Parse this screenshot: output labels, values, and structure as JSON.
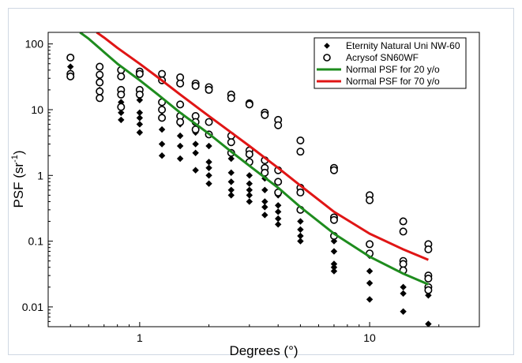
{
  "chart_data": {
    "type": "scatter",
    "xlabel": "Degrees (°)",
    "ylabel_main": "PSF (sr",
    "ylabel_sup": "-1",
    "ylabel_close": ")",
    "x_scale": "log",
    "y_scale": "log",
    "xlim": [
      0.4,
      30
    ],
    "ylim": [
      0.005,
      150
    ],
    "x_ticks": [
      1,
      10
    ],
    "x_tick_labels": [
      "1",
      "10"
    ],
    "y_ticks": [
      0.01,
      0.1,
      1,
      10,
      100
    ],
    "y_tick_labels": [
      "0.01",
      "0.1",
      "1",
      "10",
      "100"
    ],
    "grid": false,
    "legend_position": "top-right",
    "series": [
      {
        "name": "Eternity Natural Uni NW-60",
        "kind": "scatter",
        "marker": "diamond",
        "color": "#000000",
        "points": [
          [
            0.5,
            45
          ],
          [
            0.5,
            33
          ],
          [
            0.67,
            28
          ],
          [
            0.67,
            20
          ],
          [
            0.67,
            15
          ],
          [
            0.83,
            17
          ],
          [
            0.83,
            13
          ],
          [
            0.83,
            9
          ],
          [
            0.83,
            7
          ],
          [
            1.0,
            14
          ],
          [
            1.0,
            9
          ],
          [
            1.0,
            7.5
          ],
          [
            1.0,
            6
          ],
          [
            1.0,
            4.5
          ],
          [
            1.25,
            8
          ],
          [
            1.25,
            5
          ],
          [
            1.25,
            3
          ],
          [
            1.25,
            2
          ],
          [
            1.5,
            6
          ],
          [
            1.5,
            4
          ],
          [
            1.5,
            2.8
          ],
          [
            1.5,
            1.8
          ],
          [
            1.75,
            4.5
          ],
          [
            1.75,
            3
          ],
          [
            1.75,
            2.2
          ],
          [
            1.75,
            1.2
          ],
          [
            2.0,
            2.8
          ],
          [
            2.0,
            1.6
          ],
          [
            2.0,
            1.3
          ],
          [
            2.0,
            1.0
          ],
          [
            2.0,
            0.75
          ],
          [
            2.5,
            1.8
          ],
          [
            2.5,
            1.1
          ],
          [
            2.5,
            0.8
          ],
          [
            2.5,
            0.6
          ],
          [
            2.5,
            0.5
          ],
          [
            3.0,
            1.0
          ],
          [
            3.0,
            0.75
          ],
          [
            3.0,
            0.6
          ],
          [
            3.0,
            0.5
          ],
          [
            3.0,
            0.4
          ],
          [
            3.5,
            0.9
          ],
          [
            3.5,
            0.6
          ],
          [
            3.5,
            0.4
          ],
          [
            3.5,
            0.33
          ],
          [
            3.5,
            0.25
          ],
          [
            4.0,
            0.5
          ],
          [
            4.0,
            0.35
          ],
          [
            4.0,
            0.28
          ],
          [
            4.0,
            0.22
          ],
          [
            4.0,
            0.18
          ],
          [
            5.0,
            0.3
          ],
          [
            5.0,
            0.2
          ],
          [
            5.0,
            0.15
          ],
          [
            5.0,
            0.12
          ],
          [
            5.0,
            0.1
          ],
          [
            7.0,
            0.1
          ],
          [
            7.0,
            0.07
          ],
          [
            7.0,
            0.045
          ],
          [
            7.0,
            0.04
          ],
          [
            7.0,
            0.035
          ],
          [
            10.0,
            0.06
          ],
          [
            10.0,
            0.035
          ],
          [
            10.0,
            0.023
          ],
          [
            10.0,
            0.013
          ],
          [
            14.0,
            0.045
          ],
          [
            14.0,
            0.035
          ],
          [
            14.0,
            0.02
          ],
          [
            14.0,
            0.016
          ],
          [
            14.0,
            0.0085
          ],
          [
            18.0,
            0.03
          ],
          [
            18.0,
            0.02
          ],
          [
            18.0,
            0.015
          ],
          [
            18.0,
            0.0055
          ]
        ]
      },
      {
        "name": "Acrysof SN60WF",
        "kind": "scatter",
        "marker": "open-circle",
        "color": "#000000",
        "points": [
          [
            0.5,
            62
          ],
          [
            0.5,
            35
          ],
          [
            0.5,
            32
          ],
          [
            0.67,
            45
          ],
          [
            0.67,
            34
          ],
          [
            0.67,
            26
          ],
          [
            0.67,
            19
          ],
          [
            0.67,
            15
          ],
          [
            0.83,
            40
          ],
          [
            0.83,
            32
          ],
          [
            0.83,
            20
          ],
          [
            0.83,
            17
          ],
          [
            0.83,
            11
          ],
          [
            1.0,
            38
          ],
          [
            1.0,
            35
          ],
          [
            1.0,
            20
          ],
          [
            1.0,
            17
          ],
          [
            1.25,
            35
          ],
          [
            1.25,
            28
          ],
          [
            1.25,
            13
          ],
          [
            1.25,
            10
          ],
          [
            1.25,
            7.5
          ],
          [
            1.5,
            31
          ],
          [
            1.5,
            25
          ],
          [
            1.5,
            12
          ],
          [
            1.5,
            8
          ],
          [
            1.5,
            6.5
          ],
          [
            1.75,
            25
          ],
          [
            1.75,
            23
          ],
          [
            1.75,
            8
          ],
          [
            1.75,
            6.5
          ],
          [
            1.75,
            5
          ],
          [
            2.0,
            22
          ],
          [
            2.0,
            20
          ],
          [
            2.0,
            6.5
          ],
          [
            2.0,
            4.2
          ],
          [
            2.5,
            17
          ],
          [
            2.5,
            15
          ],
          [
            2.5,
            4
          ],
          [
            2.5,
            3.2
          ],
          [
            2.5,
            2.2
          ],
          [
            3.0,
            12.5
          ],
          [
            3.0,
            12
          ],
          [
            3.0,
            2.4
          ],
          [
            3.0,
            2.1
          ],
          [
            3.0,
            1.6
          ],
          [
            3.5,
            9
          ],
          [
            3.5,
            8.3
          ],
          [
            3.5,
            1.7
          ],
          [
            3.5,
            1.3
          ],
          [
            3.5,
            1.1
          ],
          [
            4.0,
            7
          ],
          [
            4.0,
            5.8
          ],
          [
            4.0,
            1.2
          ],
          [
            4.0,
            0.8
          ],
          [
            4.0,
            0.55
          ],
          [
            5.0,
            3.4
          ],
          [
            5.0,
            2.3
          ],
          [
            5.0,
            0.65
          ],
          [
            5.0,
            0.55
          ],
          [
            5.0,
            0.3
          ],
          [
            7.0,
            1.3
          ],
          [
            7.0,
            1.2
          ],
          [
            7.0,
            0.23
          ],
          [
            7.0,
            0.21
          ],
          [
            7.0,
            0.12
          ],
          [
            10.0,
            0.5
          ],
          [
            10.0,
            0.42
          ],
          [
            10.0,
            0.09
          ],
          [
            10.0,
            0.065
          ],
          [
            14.0,
            0.2
          ],
          [
            14.0,
            0.14
          ],
          [
            14.0,
            0.05
          ],
          [
            14.0,
            0.045
          ],
          [
            14.0,
            0.036
          ],
          [
            18.0,
            0.09
          ],
          [
            18.0,
            0.075
          ],
          [
            18.0,
            0.03
          ],
          [
            18.0,
            0.027
          ],
          [
            18.0,
            0.02
          ],
          [
            18.0,
            0.018
          ]
        ]
      },
      {
        "name": "Normal PSF for 20 y/o",
        "kind": "line",
        "color": "#1e8c1e",
        "points": [
          [
            0.55,
            150
          ],
          [
            0.6,
            120
          ],
          [
            0.7,
            75
          ],
          [
            0.8,
            50
          ],
          [
            1.0,
            28
          ],
          [
            1.2,
            17
          ],
          [
            1.5,
            9
          ],
          [
            2.0,
            4.3
          ],
          [
            2.5,
            2.3
          ],
          [
            3.0,
            1.4
          ],
          [
            4.0,
            0.65
          ],
          [
            5.0,
            0.33
          ],
          [
            7.0,
            0.13
          ],
          [
            10.0,
            0.058
          ],
          [
            14.0,
            0.032
          ],
          [
            18.0,
            0.022
          ]
        ]
      },
      {
        "name": "Normal PSF for 70 y/o",
        "kind": "line",
        "color": "#e01515",
        "points": [
          [
            0.65,
            150
          ],
          [
            0.7,
            125
          ],
          [
            0.8,
            87
          ],
          [
            1.0,
            50
          ],
          [
            1.2,
            31
          ],
          [
            1.5,
            17
          ],
          [
            2.0,
            8
          ],
          [
            2.5,
            4.5
          ],
          [
            3.0,
            2.8
          ],
          [
            4.0,
            1.3
          ],
          [
            5.0,
            0.7
          ],
          [
            7.0,
            0.28
          ],
          [
            10.0,
            0.13
          ],
          [
            14.0,
            0.075
          ],
          [
            18.0,
            0.052
          ]
        ]
      }
    ]
  }
}
